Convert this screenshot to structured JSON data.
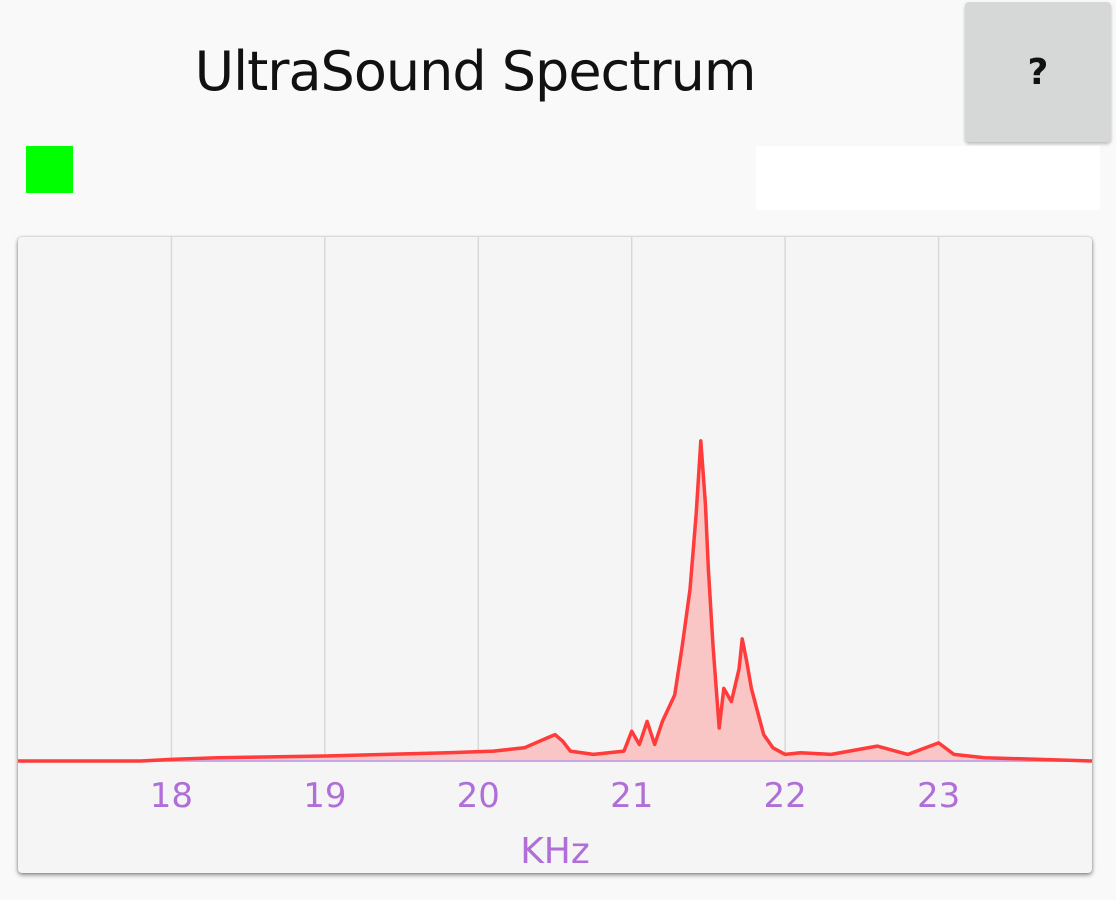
{
  "header": {
    "title": "UltraSound Spectrum",
    "help_label": "?"
  },
  "status": {
    "indicator_color": "#00ff00",
    "field_value": ""
  },
  "chart_data": {
    "type": "area",
    "title": "",
    "xlabel": "KHz",
    "ylabel": "",
    "xlim": [
      17.0,
      24.0
    ],
    "ylim": [
      0,
      1.0
    ],
    "grid": "vertical",
    "line_color": "#ff3b3b",
    "fill_color": "#f9c5c5",
    "axis_label_color": "#b06fd8",
    "x_ticks": [
      18,
      19,
      20,
      21,
      22,
      23
    ],
    "x_tick_labels": [
      "18",
      "19",
      "20",
      "21",
      "22",
      "23"
    ],
    "series": [
      {
        "x": [
          17.0,
          17.8,
          18.0,
          18.3,
          18.6,
          19.0,
          19.4,
          19.8,
          20.1,
          20.3,
          20.45,
          20.5,
          20.55,
          20.6,
          20.75,
          20.95,
          21.0,
          21.05,
          21.1,
          21.15,
          21.2,
          21.28,
          21.33,
          21.38,
          21.42,
          21.45,
          21.48,
          21.5,
          21.53,
          21.57,
          21.6,
          21.65,
          21.7,
          21.72,
          21.75,
          21.78,
          21.82,
          21.86,
          21.92,
          22.0,
          22.1,
          22.3,
          22.6,
          22.8,
          23.0,
          23.1,
          23.3,
          24.0
        ],
        "y": [
          0.0,
          0.0,
          0.005,
          0.01,
          0.012,
          0.015,
          0.02,
          0.025,
          0.03,
          0.04,
          0.07,
          0.08,
          0.06,
          0.03,
          0.02,
          0.03,
          0.09,
          0.05,
          0.12,
          0.05,
          0.12,
          0.2,
          0.35,
          0.52,
          0.75,
          0.97,
          0.78,
          0.58,
          0.35,
          0.1,
          0.22,
          0.18,
          0.28,
          0.37,
          0.3,
          0.22,
          0.15,
          0.08,
          0.04,
          0.02,
          0.025,
          0.02,
          0.045,
          0.02,
          0.055,
          0.02,
          0.01,
          0.0
        ]
      }
    ]
  }
}
